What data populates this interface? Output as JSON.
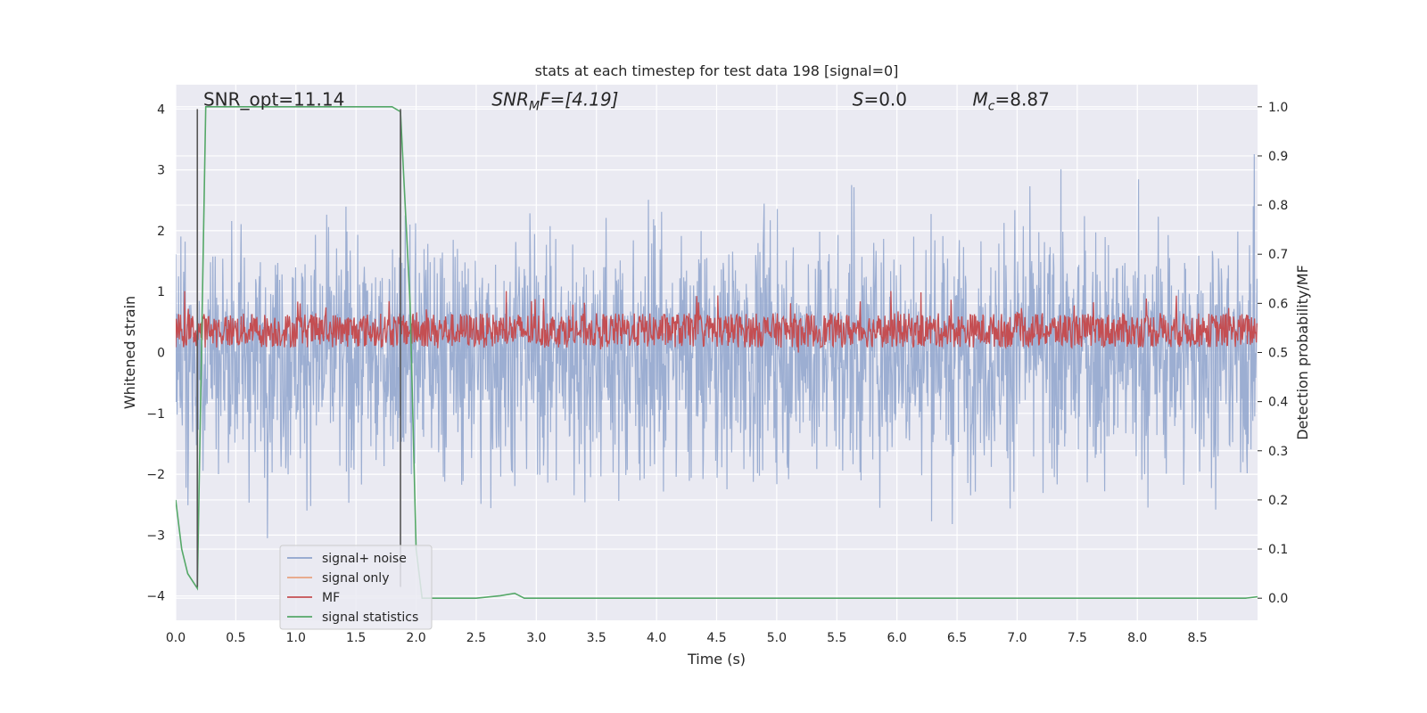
{
  "chart_data": {
    "type": "line",
    "title": "stats at each timestep for test data 198 [signal=0]",
    "xlabel": "Time (s)",
    "ylabel_left": "Whitened strain",
    "ylabel_right": "Detection probability/MF",
    "xlim": [
      0.0,
      9.0
    ],
    "ylim_left": [
      -4.4,
      4.4
    ],
    "ylim_right": [
      -0.045,
      1.045
    ],
    "x_ticks": [
      "0.0",
      "0.5",
      "1.0",
      "1.5",
      "2.0",
      "2.5",
      "3.0",
      "3.5",
      "4.0",
      "4.5",
      "5.0",
      "5.5",
      "6.0",
      "6.5",
      "7.0",
      "7.5",
      "8.0",
      "8.5"
    ],
    "y_ticks_left": [
      "-4",
      "-3",
      "-2",
      "-1",
      "0",
      "1",
      "2",
      "3",
      "4"
    ],
    "y_ticks_right": [
      "0.0",
      "0.1",
      "0.2",
      "0.3",
      "0.4",
      "0.5",
      "0.6",
      "0.7",
      "0.8",
      "0.9",
      "1.0"
    ],
    "grid": true,
    "legend_position": "lower-left",
    "annotations": [
      {
        "text": "SNR_opt=11.14",
        "x": 0.2,
        "y": 4.1
      },
      {
        "text": "SNR_MF=[4.19]",
        "x": 2.6,
        "y": 4.1
      },
      {
        "text": "S=0.0",
        "x": 5.6,
        "y": 4.1
      },
      {
        "text": "M_c=8.87",
        "x": 6.6,
        "y": 4.1
      }
    ],
    "annot_display": {
      "snr_opt": "SNR_opt=11.14",
      "snr_mf_base": "SNR",
      "snr_mf_sub": "M",
      "snr_mf_rest": "F=[4.19]",
      "s_sym": "S",
      "s_rest": "=0.0",
      "mc_base": "M",
      "mc_sub": "c",
      "mc_rest": "=8.87"
    },
    "vertical_lines": {
      "x": [
        0.18,
        1.87
      ],
      "y_range": [
        -3.85,
        4.0
      ],
      "color": "#555555"
    },
    "series": [
      {
        "name": "signal+ noise",
        "color": "#8ea3cc",
        "axis": "left",
        "style": "dense noise around 0, amplitude about ±2, peaks up to ±4",
        "x_range": [
          0.0,
          9.0
        ],
        "n_samples": 2300
      },
      {
        "name": "signal only",
        "color": "#e8a27f",
        "axis": "left",
        "style": "zero throughout (hidden under noise)"
      },
      {
        "name": "MF",
        "color": "#c44e52",
        "axis": "right",
        "style": "noisy band between 0.50 and 0.60, occasional peak 0.62",
        "x_range": [
          0.0,
          9.0
        ],
        "n_samples": 1800
      },
      {
        "name": "signal statistics",
        "color": "#55a868",
        "axis": "right",
        "x": [
          0.0,
          0.05,
          0.1,
          0.18,
          0.25,
          0.3,
          1.8,
          1.87,
          1.95,
          2.0,
          2.05,
          2.5,
          2.7,
          2.82,
          2.9,
          3.0,
          8.0,
          8.9,
          9.0
        ],
        "y": [
          0.2,
          0.1,
          0.05,
          0.02,
          1.0,
          1.0,
          1.0,
          0.99,
          0.6,
          0.1,
          0.0,
          0.0,
          0.005,
          0.01,
          0.0,
          0.0,
          0.0,
          0.0,
          0.003
        ]
      }
    ]
  }
}
